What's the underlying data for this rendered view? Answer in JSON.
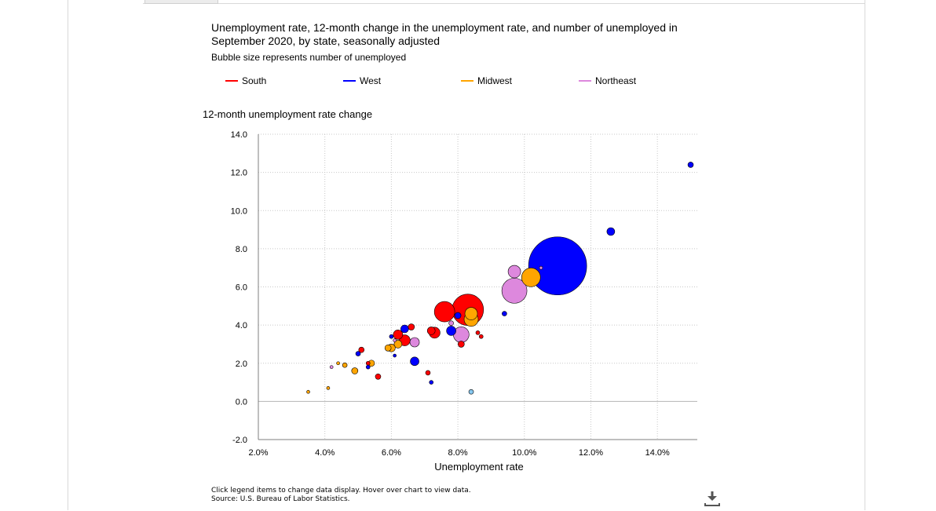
{
  "title": "Unemployment rate, 12-month change in the unemployment rate, and number of unemployed in September 2020, by state, seasonally adjusted",
  "subtitle": "Bubble size represents number of unemployed",
  "legend": [
    {
      "label": "South",
      "color": "#ff0000"
    },
    {
      "label": "West",
      "color": "#0000ff"
    },
    {
      "label": "Midwest",
      "color": "#ffa500"
    },
    {
      "label": "Northeast",
      "color": "#dd88dd"
    }
  ],
  "note": "Click legend items to change data display. Hover over chart to view data.",
  "source": "Source: U.S. Bureau of Labor Statistics.",
  "icons": {
    "download": "download-icon"
  },
  "chart_data": {
    "type": "scatter",
    "title": "Unemployment rate, 12-month change in the unemployment rate, and number of unemployed in September 2020, by state, seasonally adjusted",
    "xlabel": "Unemployment rate",
    "ylabel": "12-month unemployment rate change",
    "xlim": [
      2.0,
      15.2
    ],
    "ylim": [
      -2.0,
      14.0
    ],
    "x_ticks": [
      "2.0%",
      "4.0%",
      "6.0%",
      "8.0%",
      "10.0%",
      "12.0%",
      "14.0%"
    ],
    "y_ticks": [
      "-2.0",
      "0.0",
      "2.0",
      "4.0",
      "6.0",
      "8.0",
      "10.0",
      "12.0",
      "14.0"
    ],
    "grid": true,
    "legend_position": "top",
    "size_encoding": "number of unemployed",
    "series": [
      {
        "name": "South",
        "color": "#ff0000",
        "points": [
          {
            "x": 8.3,
            "y": 4.8,
            "r": 20
          },
          {
            "x": 7.6,
            "y": 4.7,
            "r": 13
          },
          {
            "x": 6.2,
            "y": 3.5,
            "r": 6
          },
          {
            "x": 6.4,
            "y": 3.2,
            "r": 7
          },
          {
            "x": 6.6,
            "y": 3.9,
            "r": 4
          },
          {
            "x": 7.2,
            "y": 3.7,
            "r": 5
          },
          {
            "x": 7.3,
            "y": 3.6,
            "r": 7
          },
          {
            "x": 5.1,
            "y": 2.7,
            "r": 3.5
          },
          {
            "x": 5.6,
            "y": 1.3,
            "r": 3.5
          },
          {
            "x": 7.1,
            "y": 1.5,
            "r": 3
          },
          {
            "x": 8.1,
            "y": 3.0,
            "r": 4
          },
          {
            "x": 8.6,
            "y": 3.6,
            "r": 2.5
          },
          {
            "x": 8.7,
            "y": 3.4,
            "r": 2.5
          },
          {
            "x": 5.3,
            "y": 2.0,
            "r": 2.5
          }
        ]
      },
      {
        "name": "West",
        "color": "#0000ff",
        "points": [
          {
            "x": 11.0,
            "y": 7.1,
            "r": 37
          },
          {
            "x": 15.0,
            "y": 12.4,
            "r": 3.5
          },
          {
            "x": 12.6,
            "y": 8.9,
            "r": 5
          },
          {
            "x": 9.4,
            "y": 4.6,
            "r": 3
          },
          {
            "x": 7.8,
            "y": 3.7,
            "r": 6
          },
          {
            "x": 8.0,
            "y": 4.5,
            "r": 4
          },
          {
            "x": 6.4,
            "y": 3.8,
            "r": 5
          },
          {
            "x": 6.7,
            "y": 2.1,
            "r": 5.5
          },
          {
            "x": 7.2,
            "y": 1.0,
            "r": 2.5
          },
          {
            "x": 6.1,
            "y": 2.4,
            "r": 2
          },
          {
            "x": 5.0,
            "y": 2.5,
            "r": 3
          },
          {
            "x": 5.3,
            "y": 1.8,
            "r": 2.5
          },
          {
            "x": 6.0,
            "y": 3.4,
            "r": 2.5
          }
        ]
      },
      {
        "name": "Midwest",
        "color": "#ffa500",
        "points": [
          {
            "x": 10.2,
            "y": 6.5,
            "r": 12
          },
          {
            "x": 8.4,
            "y": 4.6,
            "r": 8
          },
          {
            "x": 8.4,
            "y": 4.3,
            "r": 9
          },
          {
            "x": 6.2,
            "y": 3.0,
            "r": 5
          },
          {
            "x": 6.0,
            "y": 2.8,
            "r": 5
          },
          {
            "x": 5.9,
            "y": 2.8,
            "r": 4
          },
          {
            "x": 5.4,
            "y": 2.0,
            "r": 4
          },
          {
            "x": 4.9,
            "y": 1.6,
            "r": 4
          },
          {
            "x": 4.6,
            "y": 1.9,
            "r": 3
          },
          {
            "x": 4.4,
            "y": 2.0,
            "r": 2
          },
          {
            "x": 4.1,
            "y": 0.7,
            "r": 2
          },
          {
            "x": 3.5,
            "y": 0.5,
            "r": 2
          }
        ]
      },
      {
        "name": "Northeast",
        "color": "#dd88dd",
        "points": [
          {
            "x": 9.7,
            "y": 5.8,
            "r": 16
          },
          {
            "x": 9.7,
            "y": 6.8,
            "r": 8
          },
          {
            "x": 8.1,
            "y": 3.5,
            "r": 10
          },
          {
            "x": 6.7,
            "y": 3.1,
            "r": 6
          },
          {
            "x": 7.8,
            "y": 4.1,
            "r": 3
          },
          {
            "x": 10.5,
            "y": 7.0,
            "r": 2
          },
          {
            "x": 4.2,
            "y": 1.8,
            "r": 2
          },
          {
            "x": 6.1,
            "y": 3.2,
            "r": 2
          }
        ]
      },
      {
        "name": "",
        "color": "#87c8f0",
        "points": [
          {
            "x": 8.4,
            "y": 0.5,
            "r": 3
          }
        ]
      }
    ]
  }
}
